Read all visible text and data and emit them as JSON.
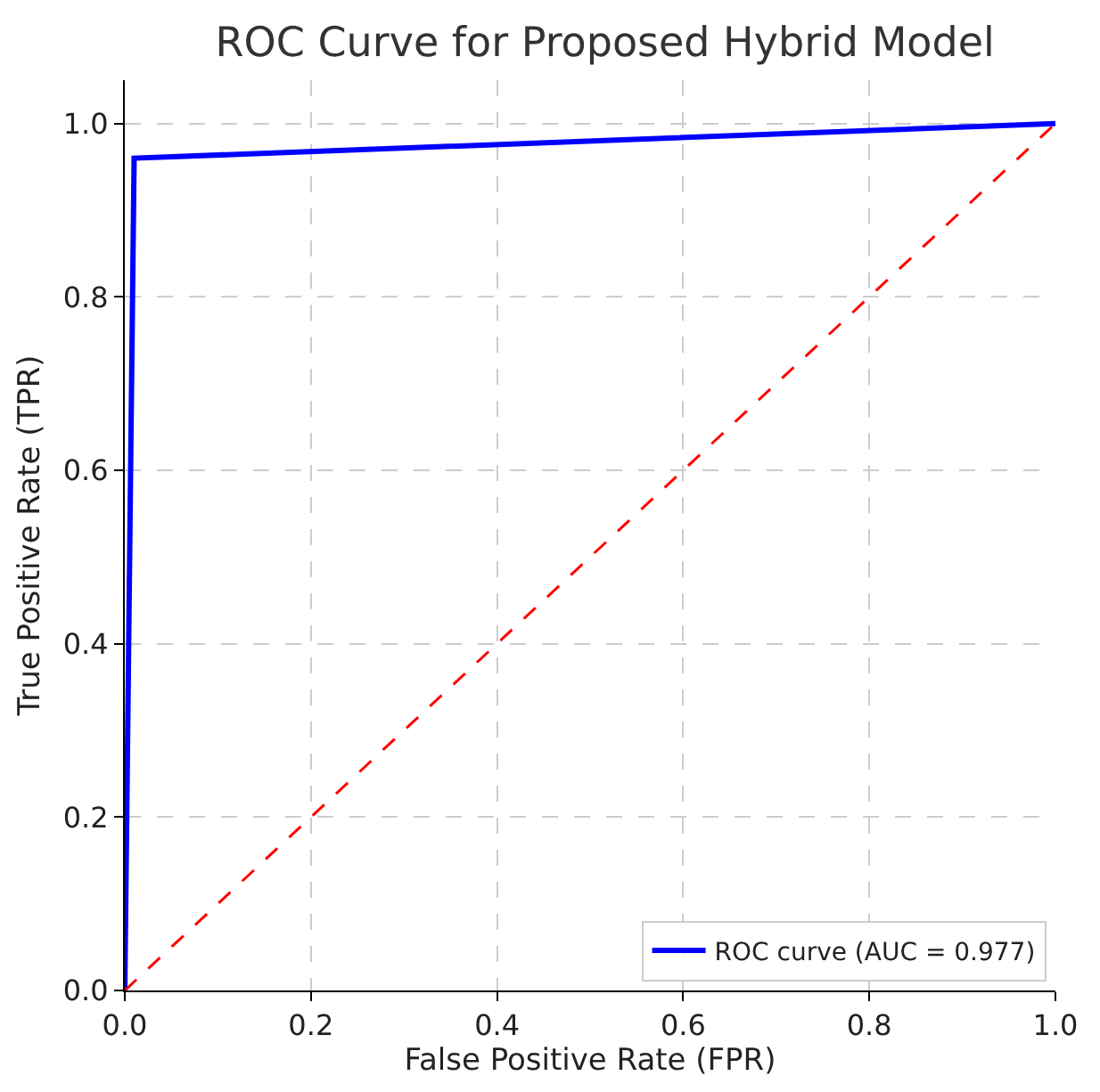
{
  "chart_data": {
    "type": "line",
    "title": "ROC Curve for Proposed Hybrid Model",
    "xlabel": "False Positive Rate (FPR)",
    "ylabel": "True Positive Rate (TPR)",
    "series": [
      {
        "name": "ROC curve (AUC = 0.977)",
        "color": "#0000ff",
        "x": [
          0,
          0.01,
          1
        ],
        "values": [
          0,
          0.96,
          1
        ],
        "line_style": "solid"
      },
      {
        "color": "#ff0000",
        "x": [
          0,
          1
        ],
        "values": [
          0,
          1
        ],
        "line_style": "dashed"
      }
    ],
    "xlim": [
      0,
      1
    ],
    "ylim": [
      0,
      1.05
    ],
    "xticks": [
      {
        "value": 0,
        "label": "0.0"
      },
      0.2,
      0.4,
      0.6,
      0.8,
      {
        "value": 1,
        "label": "1.0"
      }
    ],
    "yticks": [
      {
        "value": 0,
        "label": "0.0"
      },
      0.2,
      0.4,
      0.6,
      0.8,
      {
        "value": 1,
        "label": "1.0"
      }
    ],
    "grid": true,
    "legend": "bottom right",
    "marker": "none"
  }
}
